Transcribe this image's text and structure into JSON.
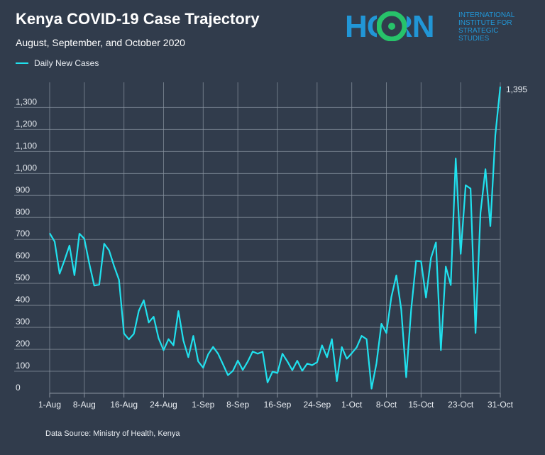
{
  "header": {
    "title": "Kenya COVID-19 Case Trajectory",
    "subtitle": "August, September, and October 2020"
  },
  "logo": {
    "main": "HORN",
    "sub": [
      "INTERNATIONAL",
      "INSTITUTE FOR",
      "STRATEGIC",
      "STUDIES"
    ],
    "color": "#2196d6",
    "accent": "#27c36a"
  },
  "footer": {
    "source": "Data Source: Ministry of Health, Kenya"
  },
  "colors": {
    "background": "#313c4c",
    "line": "#20e1ee",
    "grid": "#8a94a1"
  },
  "chart_data": {
    "type": "line",
    "title": "Kenya COVID-19 Case Trajectory",
    "subtitle": "August, September, and October 2020",
    "legend": "top-left",
    "grid": true,
    "ylim": [
      0,
      1395
    ],
    "yticks": [
      0,
      100,
      200,
      300,
      400,
      500,
      600,
      700,
      800,
      900,
      1000,
      1100,
      1200,
      1300
    ],
    "ytick_labels": [
      "0",
      "100",
      "200",
      "300",
      "400",
      "500",
      "600",
      "700",
      "800",
      "900",
      "1,000",
      "1,100",
      "1,200",
      "1,300"
    ],
    "xtick_labels": [
      "1-Aug",
      "8-Aug",
      "16-Aug",
      "24-Aug",
      "1-Sep",
      "8-Sep",
      "16-Sep",
      "24-Sep",
      "1-Oct",
      "8-Oct",
      "15-Oct",
      "23-Oct",
      "31-Oct"
    ],
    "xtick_index": [
      0,
      7,
      15,
      23,
      31,
      38,
      46,
      54,
      61,
      68,
      75,
      83,
      91
    ],
    "end_label": "1,395",
    "series": [
      {
        "name": "Daily New Cases",
        "values": [
          728,
          690,
          544,
          605,
          672,
          537,
          726,
          703,
          590,
          490,
          494,
          680,
          650,
          579,
          516,
          272,
          245,
          270,
          375,
          423,
          322,
          348,
          250,
          196,
          246,
          218,
          374,
          240,
          164,
          261,
          145,
          116,
          177,
          211,
          180,
          132,
          82,
          102,
          149,
          106,
          144,
          190,
          180,
          189,
          49,
          98,
          92,
          180,
          145,
          105,
          148,
          102,
          135,
          128,
          141,
          218,
          164,
          246,
          55,
          210,
          157,
          182,
          209,
          261,
          246,
          21,
          136,
          316,
          274,
          438,
          536,
          382,
          73,
          380,
          602,
          600,
          435,
          615,
          686,
          196,
          576,
          492,
          1068,
          634,
          946,
          931,
          274,
          821,
          1019,
          760,
          1174,
          1395
        ]
      }
    ]
  }
}
